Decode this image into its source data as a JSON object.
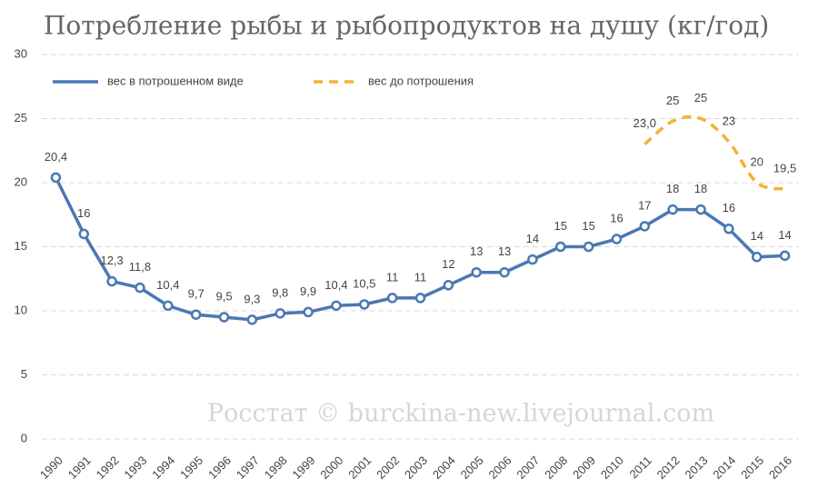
{
  "chart_data": {
    "type": "line",
    "title": "Потребление рыбы и рыбопродуктов на душу (кг/год)",
    "annotation": "Росстат © burckina-new.livejournal.com",
    "categories": [
      "1990",
      "1991",
      "1992",
      "1993",
      "1994",
      "1995",
      "1996",
      "1997",
      "1998",
      "1999",
      "2000",
      "2001",
      "2002",
      "2003",
      "2004",
      "2005",
      "2006",
      "2007",
      "2008",
      "2009",
      "2010",
      "2011",
      "2012",
      "2013",
      "2014",
      "2015",
      "2016"
    ],
    "series": [
      {
        "name": "вес в потрошенном виде",
        "color": "#4a78b3",
        "dashed": false,
        "smooth": false,
        "markers": true,
        "values": [
          20.4,
          16,
          12.3,
          11.8,
          10.4,
          9.7,
          9.5,
          9.3,
          9.8,
          9.9,
          10.4,
          10.5,
          11,
          11,
          12,
          13,
          13,
          14,
          15,
          15,
          15.6,
          16.6,
          17.9,
          17.9,
          16.4,
          14.2,
          14.3
        ],
        "value_labels": [
          "20,4",
          "16",
          "12,3",
          "11,8",
          "10,4",
          "9,7",
          "9,5",
          "9,3",
          "9,8",
          "9,9",
          "10,4",
          "10,5",
          "11",
          "11",
          "12",
          "13",
          "13",
          "14",
          "15",
          "15",
          "16",
          "17",
          "18",
          "18",
          "16",
          "14",
          "14"
        ]
      },
      {
        "name": "вес до потрошения",
        "color": "#f2b233",
        "dashed": true,
        "smooth": true,
        "markers": false,
        "values": [
          null,
          null,
          null,
          null,
          null,
          null,
          null,
          null,
          null,
          null,
          null,
          null,
          null,
          null,
          null,
          null,
          null,
          null,
          null,
          null,
          null,
          23.0,
          24.8,
          25.0,
          23.2,
          20.0,
          19.5
        ],
        "value_labels": [
          null,
          null,
          null,
          null,
          null,
          null,
          null,
          null,
          null,
          null,
          null,
          null,
          null,
          null,
          null,
          null,
          null,
          null,
          null,
          null,
          null,
          "23,0",
          "25",
          "25",
          "23",
          "20",
          "19,5"
        ]
      }
    ],
    "ylim": [
      0,
      30
    ],
    "yticks": [
      0,
      5,
      10,
      15,
      20,
      25,
      30
    ],
    "grid": true
  }
}
